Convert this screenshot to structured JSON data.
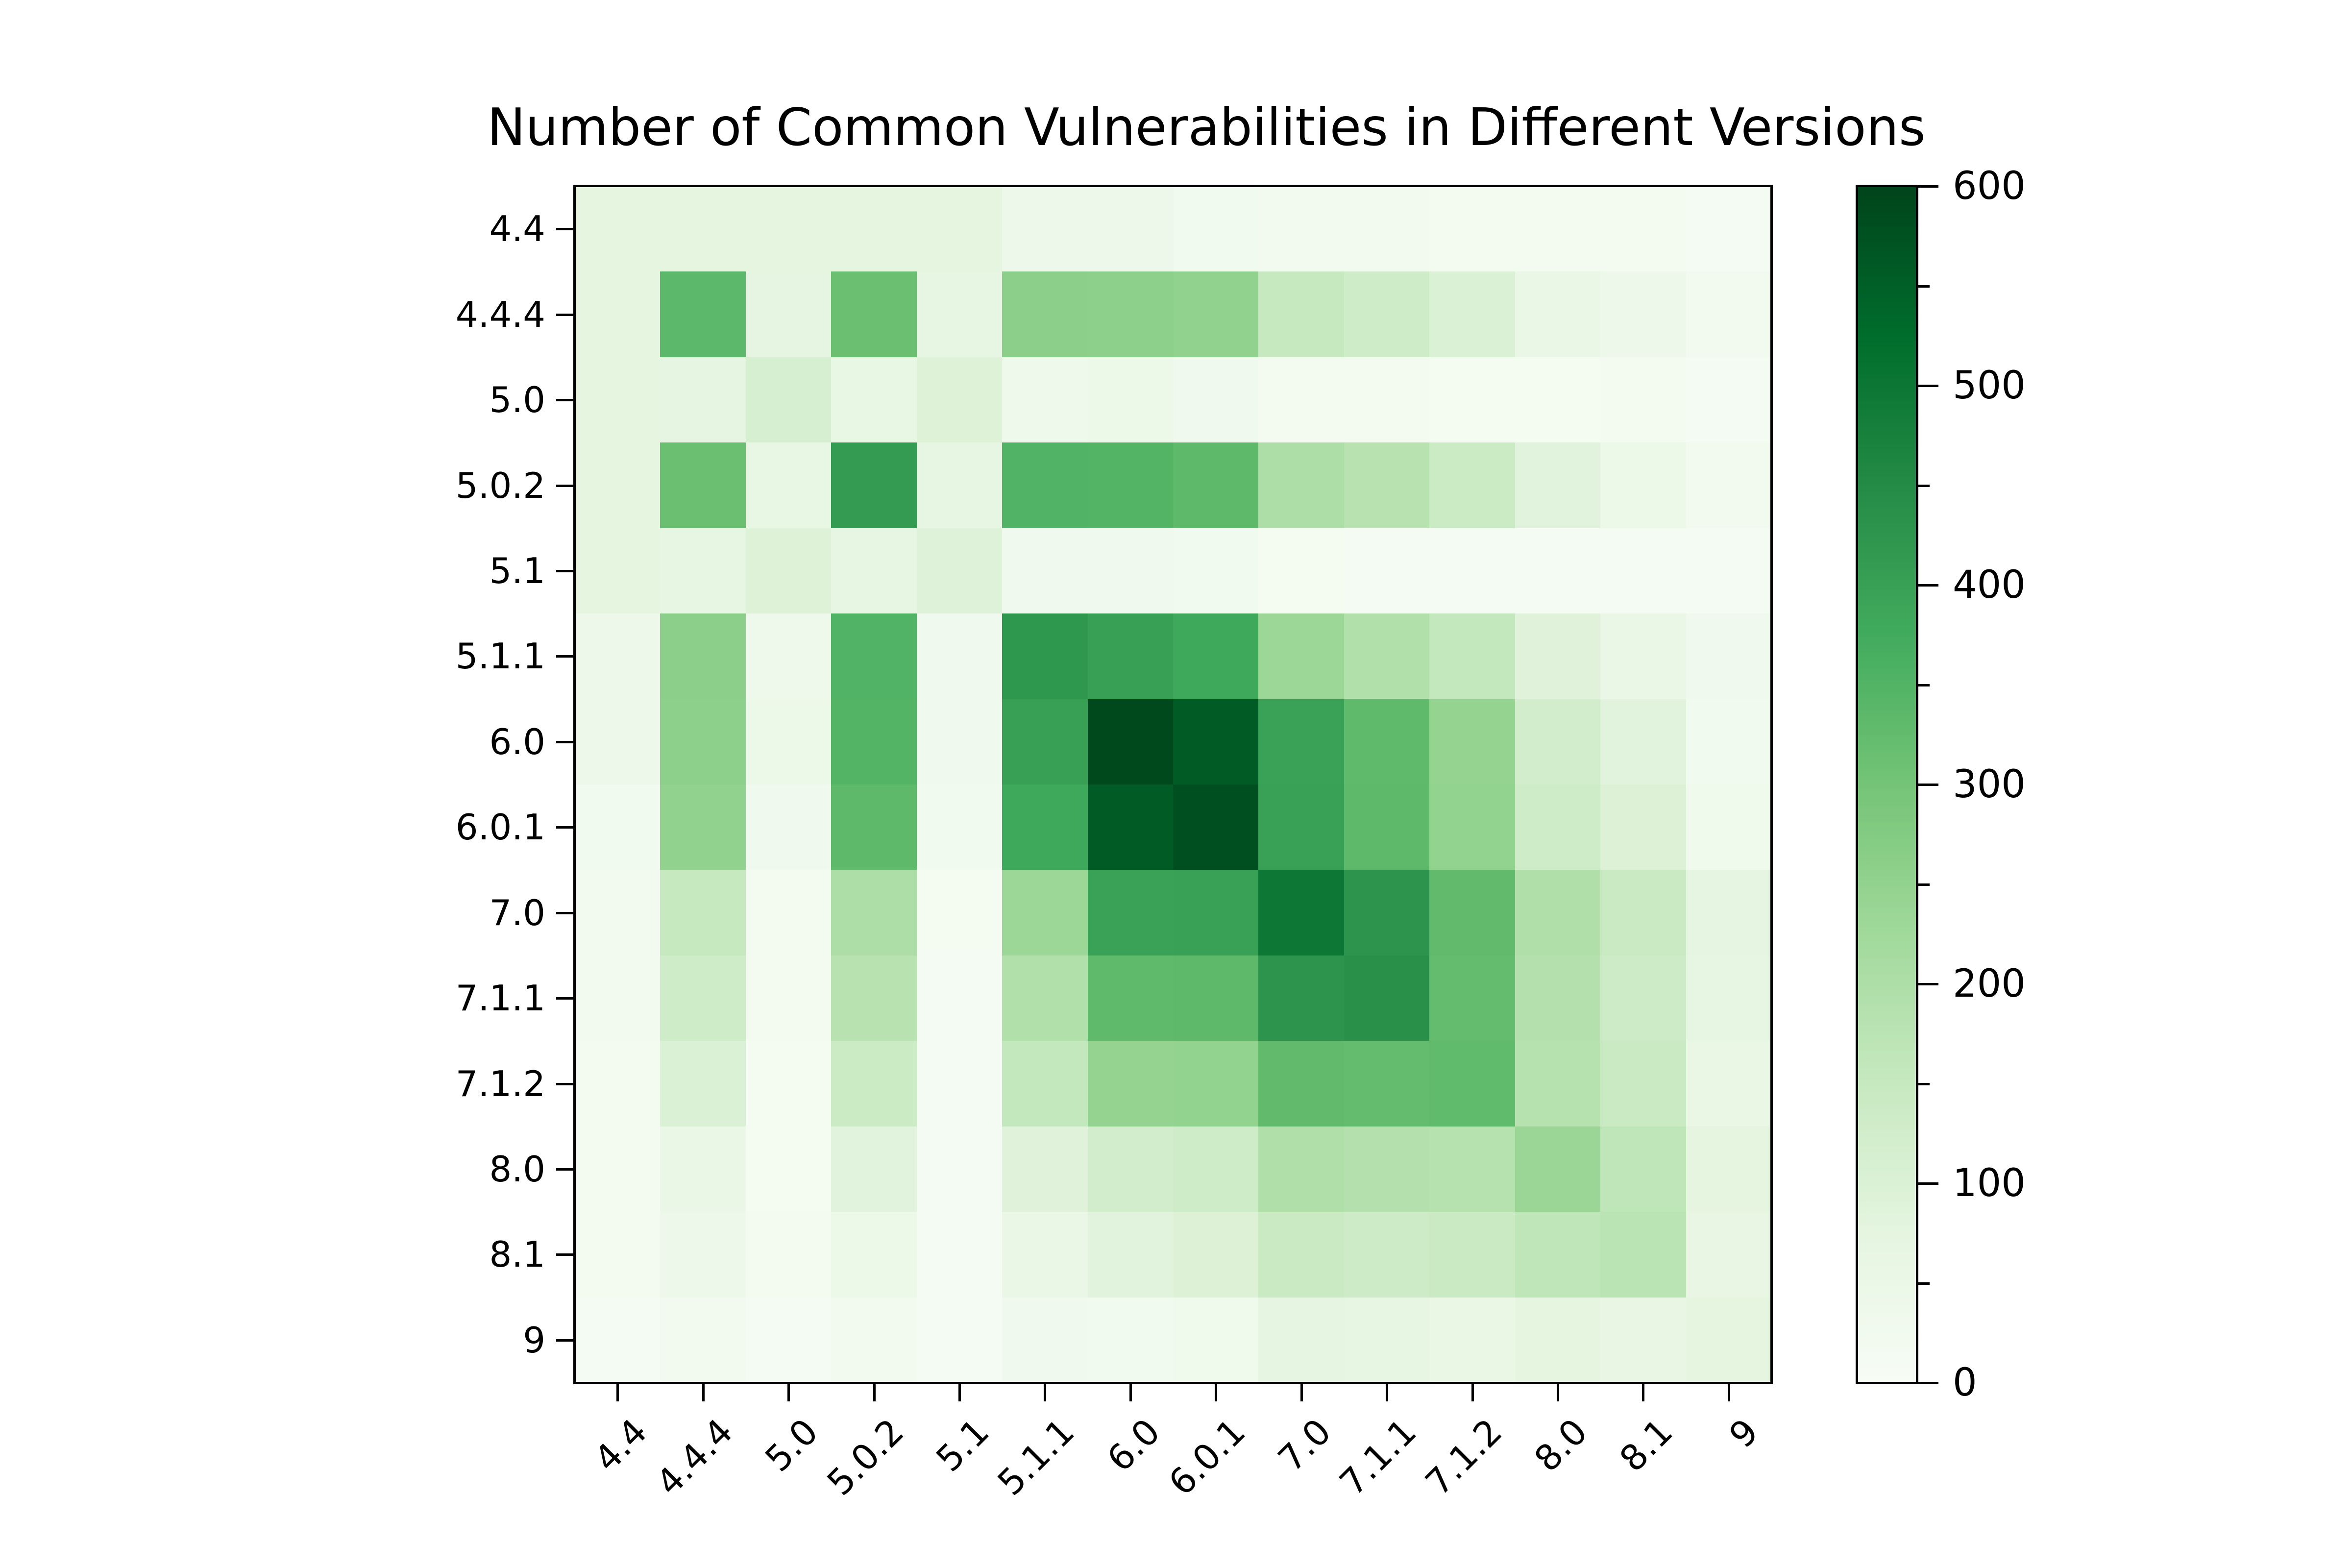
{
  "title": "Number of Common Vulnerabilities in Different Versions",
  "chart_data": {
    "type": "heatmap",
    "title": "Number of Common Vulnerabilities in Different Versions",
    "categories": [
      "4.4",
      "4.4.4",
      "5.0",
      "5.0.2",
      "5.1",
      "5.1.1",
      "6.0",
      "6.0.1",
      "7.0",
      "7.1.1",
      "7.1.2",
      "8.0",
      "8.1",
      "9"
    ],
    "x_categories": [
      "4.4",
      "4.4.4",
      "5.0",
      "5.0.2",
      "5.1",
      "5.1.1",
      "6.0",
      "6.0.1",
      "7.0",
      "7.1.1",
      "7.1.2",
      "8.0",
      "8.1",
      "9"
    ],
    "xlabel": "",
    "ylabel": "",
    "grid": false,
    "matrix": [
      [
        75,
        75,
        75,
        75,
        75,
        40,
        40,
        25,
        20,
        20,
        18,
        15,
        15,
        12
      ],
      [
        75,
        335,
        70,
        315,
        68,
        260,
        258,
        250,
        150,
        130,
        100,
        55,
        40,
        20
      ],
      [
        75,
        70,
        110,
        62,
        95,
        35,
        45,
        28,
        16,
        15,
        14,
        13,
        15,
        12
      ],
      [
        75,
        315,
        62,
        410,
        65,
        352,
        348,
        332,
        200,
        180,
        140,
        85,
        45,
        20
      ],
      [
        75,
        68,
        95,
        65,
        92,
        28,
        28,
        25,
        14,
        12,
        12,
        12,
        12,
        12
      ],
      [
        40,
        260,
        35,
        352,
        28,
        420,
        400,
        382,
        232,
        192,
        155,
        88,
        55,
        28
      ],
      [
        40,
        258,
        45,
        348,
        28,
        400,
        590,
        558,
        395,
        330,
        245,
        125,
        85,
        25
      ],
      [
        25,
        250,
        28,
        332,
        25,
        382,
        558,
        580,
        398,
        332,
        248,
        132,
        98,
        32
      ],
      [
        20,
        150,
        16,
        200,
        14,
        232,
        395,
        398,
        498,
        428,
        327,
        196,
        145,
        72
      ],
      [
        20,
        130,
        15,
        180,
        12,
        192,
        330,
        332,
        428,
        438,
        324,
        190,
        135,
        66
      ],
      [
        18,
        100,
        14,
        140,
        12,
        155,
        245,
        248,
        327,
        324,
        328,
        185,
        144,
        56
      ],
      [
        15,
        55,
        13,
        85,
        12,
        88,
        125,
        132,
        196,
        190,
        185,
        235,
        165,
        74
      ],
      [
        15,
        40,
        15,
        45,
        12,
        55,
        85,
        98,
        145,
        135,
        144,
        165,
        175,
        60
      ],
      [
        12,
        20,
        12,
        20,
        12,
        28,
        25,
        32,
        72,
        66,
        56,
        74,
        60,
        75
      ]
    ],
    "colorbar": {
      "min": 0,
      "max": 600,
      "major_ticks": [
        0,
        100,
        200,
        300,
        400,
        500,
        600
      ],
      "minor_step": 50,
      "position": "right"
    },
    "colormap": {
      "name": "Greens",
      "stops": [
        {
          "t": 0.0,
          "color": "#f7fcf5"
        },
        {
          "t": 0.125,
          "color": "#e5f5e0"
        },
        {
          "t": 0.25,
          "color": "#c7e9c0"
        },
        {
          "t": 0.375,
          "color": "#a1d99b"
        },
        {
          "t": 0.5,
          "color": "#74c476"
        },
        {
          "t": 0.625,
          "color": "#41ab5d"
        },
        {
          "t": 0.75,
          "color": "#238b45"
        },
        {
          "t": 0.875,
          "color": "#006d2c"
        },
        {
          "t": 1.0,
          "color": "#00441b"
        }
      ]
    },
    "axis_color": "#000000",
    "background_color": "#ffffff",
    "x_tick_rotation_deg": 45
  }
}
